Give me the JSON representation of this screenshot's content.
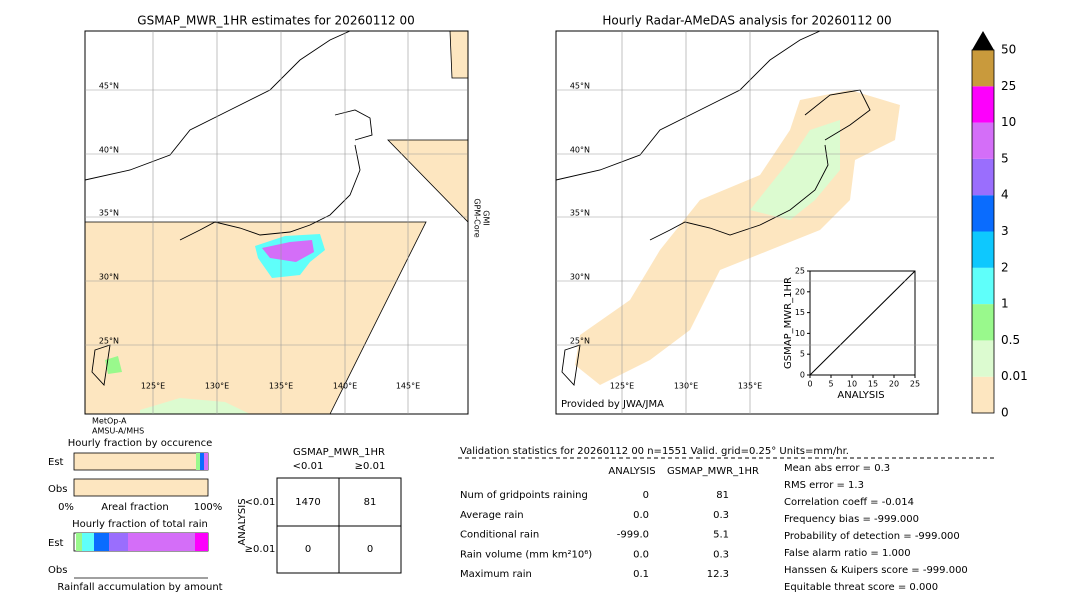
{
  "left_map": {
    "title": "GSMAP_MWR_1HR estimates for 20260112 00",
    "lat_labels": [
      "45°N",
      "40°N",
      "35°N",
      "30°N",
      "25°N"
    ],
    "lon_labels": [
      "125°E",
      "130°E",
      "135°E",
      "140°E",
      "145°E"
    ],
    "swath_labels": [
      "GPM-Core",
      "GMI"
    ],
    "sensor_labels": [
      "MetOp-A",
      "AMSU-A/MHS"
    ]
  },
  "right_map": {
    "title": "Hourly Radar-AMeDAS analysis for 20260112 00",
    "lat_labels": [
      "45°N",
      "40°N",
      "35°N",
      "30°N",
      "25°N"
    ],
    "lon_labels": [
      "125°E",
      "130°E",
      "135°E"
    ],
    "credit": "Provided by JWA/JMA"
  },
  "colorbar": {
    "labels": [
      "0",
      "0.01",
      "0.5",
      "1",
      "2",
      "3",
      "4",
      "5",
      "10",
      "25",
      "50"
    ],
    "colors": [
      "#fde6c0",
      "#dcfbd0",
      "#99f98c",
      "#5ffffa",
      "#0ec8fe",
      "#0a6cfe",
      "#9a6efd",
      "#d46ef8",
      "#fd00fc",
      "#c99a3c"
    ]
  },
  "scatter": {
    "xlabel": "ANALYSIS",
    "ylabel": "GSMAP_MWR_1HR",
    "xlim": [
      0,
      25
    ],
    "ylim": [
      0,
      25
    ],
    "xticks": [
      0,
      5,
      10,
      15,
      20,
      25
    ],
    "yticks": [
      0,
      5,
      10,
      15,
      20,
      25
    ]
  },
  "fractions": {
    "occurrence_title": "Hourly fraction by occurence",
    "rows": [
      "Est",
      "Obs"
    ],
    "axis_labels": [
      "0%",
      "Areal fraction",
      "100%"
    ],
    "total_title": "Hourly fraction of total rain",
    "footer": "Rainfall accumulation by amount"
  },
  "contingency": {
    "title": "GSMAP_MWR_1HR",
    "columns": [
      "<0.01",
      "≥0.01"
    ],
    "row_title": "ANALYSIS",
    "rows": [
      "<0.01",
      "≥0.01"
    ],
    "cells": [
      [
        1470,
        81
      ],
      [
        0,
        0
      ]
    ]
  },
  "validation": {
    "header": "Validation statistics for 20260112 00  n=1551 Valid. grid=0.25° Units=mm/hr.",
    "columns": [
      "ANALYSIS",
      "GSMAP_MWR_1HR"
    ],
    "rows": [
      [
        "Num of gridpoints raining",
        "0",
        "81"
      ],
      [
        "Average rain",
        "0.0",
        "0.3"
      ],
      [
        "Conditional rain",
        "-999.0",
        "5.1"
      ],
      [
        "Rain volume (mm km²10⁶)",
        "0.0",
        "0.3"
      ],
      [
        "Maximum rain",
        "0.1",
        "12.3"
      ]
    ],
    "scores": [
      "Mean abs error =    0.3",
      "RMS error =    1.3",
      "Correlation coeff = -0.014",
      "Frequency bias = -999.000",
      "Probability of detection = -999.000",
      "False alarm ratio =  1.000",
      "Hanssen & Kuipers score = -999.000",
      "Equitable threat score =  0.000"
    ]
  }
}
